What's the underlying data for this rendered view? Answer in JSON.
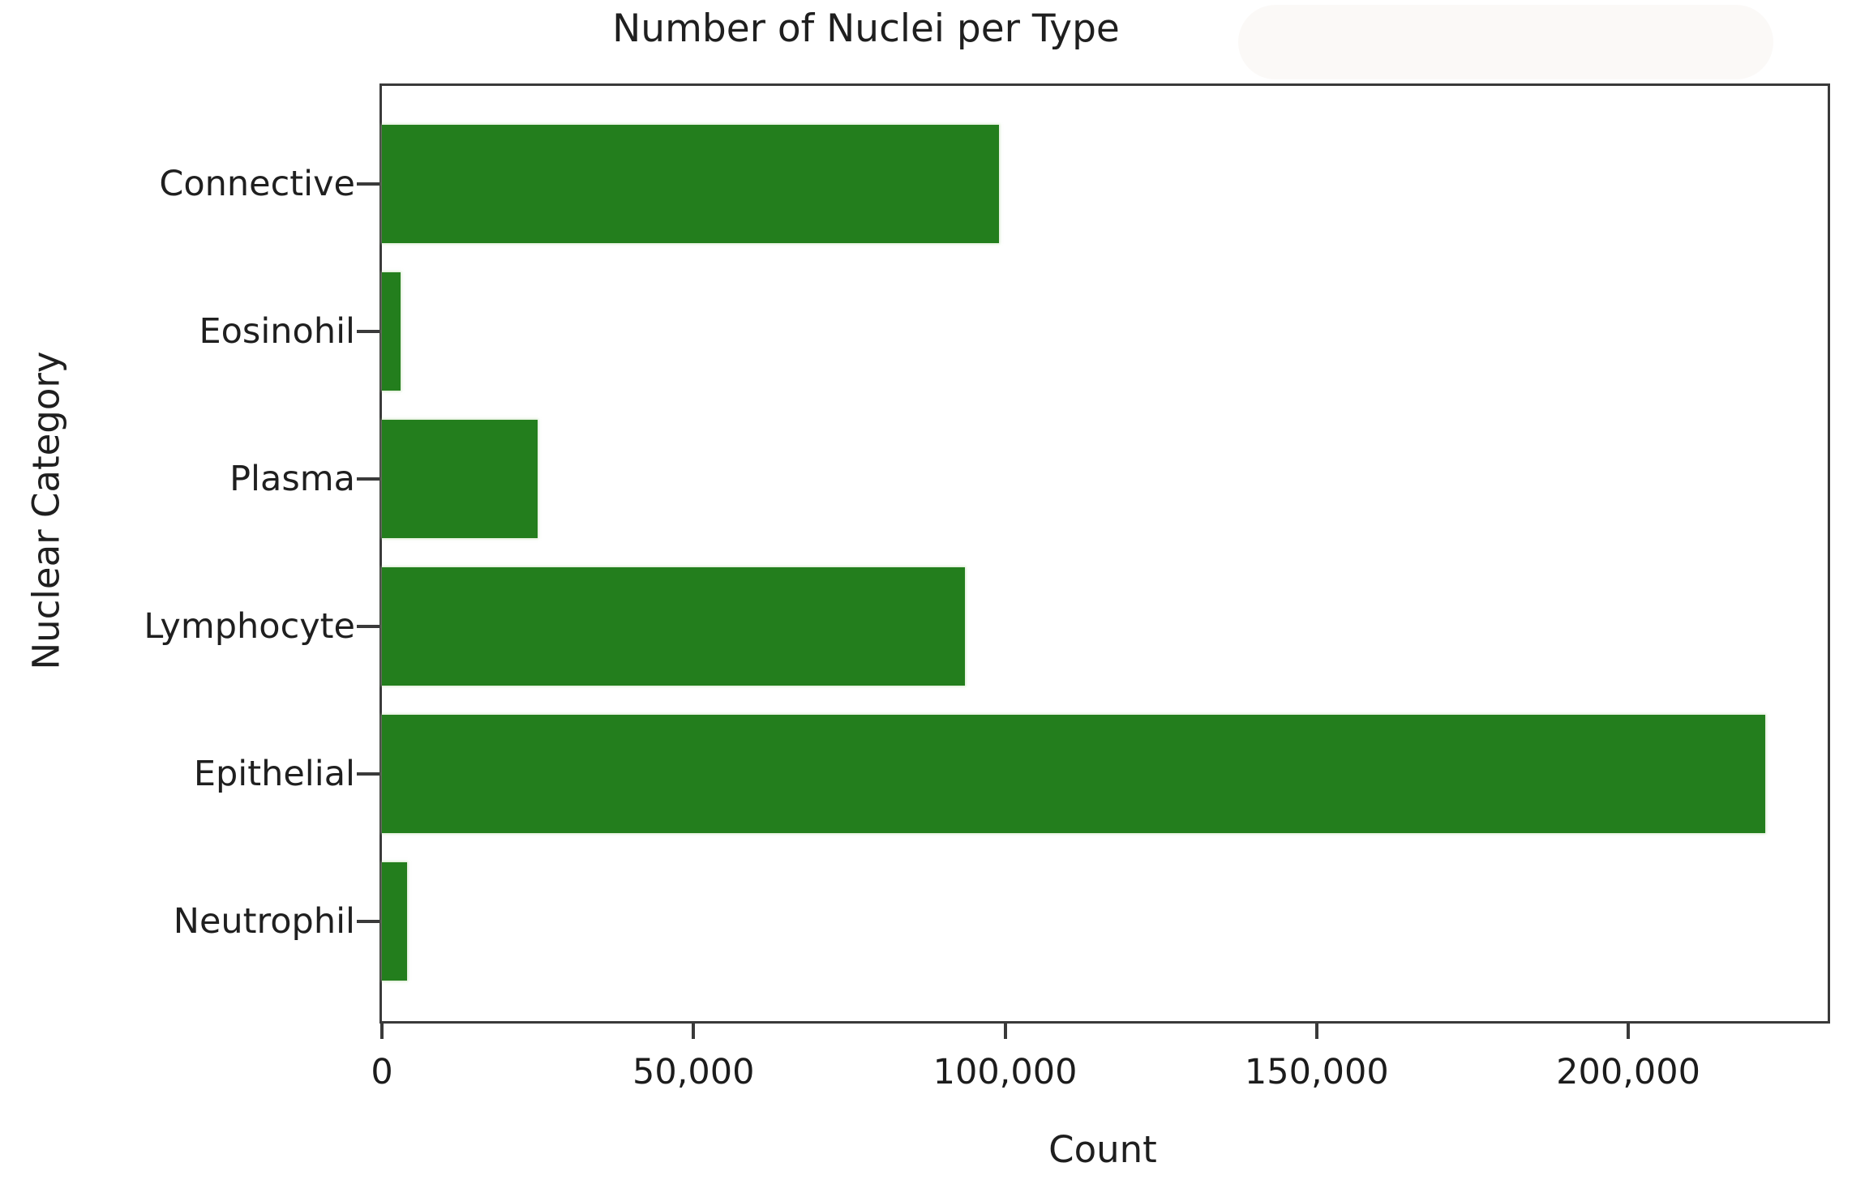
{
  "chart_data": {
    "type": "bar",
    "orientation": "horizontal",
    "title": "Number of Nuclei per Type",
    "xlabel": "Count",
    "ylabel": "Nuclear Category",
    "categories": [
      "Connective",
      "Eosinohil",
      "Plasma",
      "Lymphocyte",
      "Epithelial",
      "Neutrophil"
    ],
    "values": [
      99000,
      3000,
      25000,
      93500,
      222000,
      4000
    ],
    "xlim": [
      0,
      232000
    ],
    "xticks": [
      0,
      50000,
      100000,
      150000,
      200000
    ],
    "xtick_labels": [
      "0",
      "50,000",
      "100,000",
      "150,000",
      "200,000"
    ],
    "grid": false,
    "legend": false,
    "bar_color": "#237e1d",
    "spine_color": "#3a3a3a",
    "text_color": "#1f1f1f",
    "background_color": "#ffffff"
  }
}
